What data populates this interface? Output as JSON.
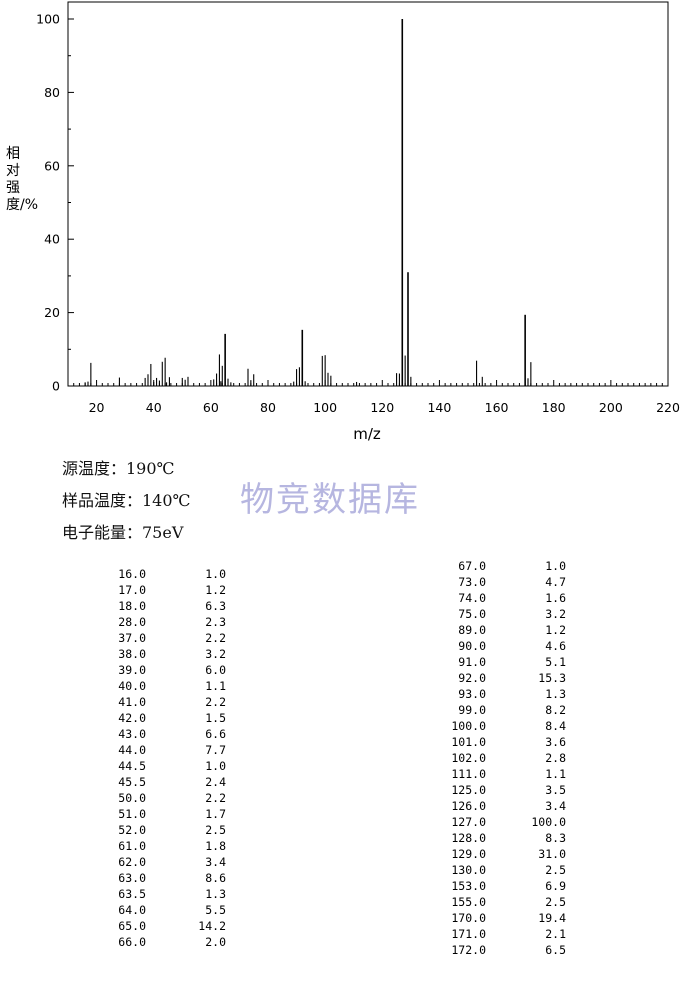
{
  "chart_data": {
    "type": "bar",
    "ylabel": "相对强度/%",
    "xlabel": "m/z",
    "xlim": [
      10,
      220
    ],
    "ylim": [
      0,
      100
    ],
    "x_ticks": [
      "20",
      "40",
      "60",
      "80",
      "100",
      "120",
      "140",
      "160",
      "180",
      "200",
      "220"
    ],
    "y_ticks": [
      "0",
      "20",
      "40",
      "60",
      "80",
      "100"
    ],
    "x": [
      16.0,
      17.0,
      18.0,
      28.0,
      37.0,
      38.0,
      39.0,
      40.0,
      41.0,
      42.0,
      43.0,
      44.0,
      44.5,
      45.5,
      50.0,
      51.0,
      52.0,
      61.0,
      62.0,
      63.0,
      63.5,
      64.0,
      65.0,
      66.0,
      67.0,
      73.0,
      74.0,
      75.0,
      89.0,
      90.0,
      91.0,
      92.0,
      93.0,
      99.0,
      100.0,
      101.0,
      102.0,
      111.0,
      125.0,
      126.0,
      127.0,
      128.0,
      129.0,
      130.0,
      153.0,
      155.0,
      170.0,
      171.0,
      172.0
    ],
    "values": [
      1.0,
      1.2,
      6.3,
      2.3,
      2.2,
      3.2,
      6.0,
      1.1,
      2.2,
      1.5,
      6.6,
      7.7,
      1.0,
      2.4,
      2.2,
      1.7,
      2.5,
      1.8,
      3.4,
      8.6,
      1.3,
      5.5,
      14.2,
      2.0,
      1.0,
      4.7,
      1.6,
      3.2,
      1.2,
      4.6,
      5.1,
      15.3,
      1.3,
      8.2,
      8.4,
      3.6,
      2.8,
      1.1,
      3.5,
      3.4,
      100.0,
      8.3,
      31.0,
      2.5,
      6.9,
      2.5,
      19.4,
      2.1,
      6.5
    ]
  },
  "info": {
    "source_temp": "源温度：190℃",
    "sample_temp": "样品温度：140℃",
    "electron_energy": "电子能量：75eV"
  },
  "watermark": "物竞数据库",
  "table": {
    "left": [
      [
        "16.0",
        "1.0"
      ],
      [
        "17.0",
        "1.2"
      ],
      [
        "18.0",
        "6.3"
      ],
      [
        "28.0",
        "2.3"
      ],
      [
        "37.0",
        "2.2"
      ],
      [
        "38.0",
        "3.2"
      ],
      [
        "39.0",
        "6.0"
      ],
      [
        "40.0",
        "1.1"
      ],
      [
        "41.0",
        "2.2"
      ],
      [
        "42.0",
        "1.5"
      ],
      [
        "43.0",
        "6.6"
      ],
      [
        "44.0",
        "7.7"
      ],
      [
        "44.5",
        "1.0"
      ],
      [
        "45.5",
        "2.4"
      ],
      [
        "50.0",
        "2.2"
      ],
      [
        "51.0",
        "1.7"
      ],
      [
        "52.0",
        "2.5"
      ],
      [
        "61.0",
        "1.8"
      ],
      [
        "62.0",
        "3.4"
      ],
      [
        "63.0",
        "8.6"
      ],
      [
        "63.5",
        "1.3"
      ],
      [
        "64.0",
        "5.5"
      ],
      [
        "65.0",
        "14.2"
      ],
      [
        "66.0",
        "2.0"
      ]
    ],
    "right": [
      [
        "67.0",
        "1.0"
      ],
      [
        "73.0",
        "4.7"
      ],
      [
        "74.0",
        "1.6"
      ],
      [
        "75.0",
        "3.2"
      ],
      [
        "89.0",
        "1.2"
      ],
      [
        "90.0",
        "4.6"
      ],
      [
        "91.0",
        "5.1"
      ],
      [
        "92.0",
        "15.3"
      ],
      [
        "93.0",
        "1.3"
      ],
      [
        "99.0",
        "8.2"
      ],
      [
        "100.0",
        "8.4"
      ],
      [
        "101.0",
        "3.6"
      ],
      [
        "102.0",
        "2.8"
      ],
      [
        "111.0",
        "1.1"
      ],
      [
        "125.0",
        "3.5"
      ],
      [
        "126.0",
        "3.4"
      ],
      [
        "127.0",
        "100.0"
      ],
      [
        "128.0",
        "8.3"
      ],
      [
        "129.0",
        "31.0"
      ],
      [
        "130.0",
        "2.5"
      ],
      [
        "153.0",
        "6.9"
      ],
      [
        "155.0",
        "2.5"
      ],
      [
        "170.0",
        "19.4"
      ],
      [
        "171.0",
        "2.1"
      ],
      [
        "172.0",
        "6.5"
      ]
    ]
  }
}
